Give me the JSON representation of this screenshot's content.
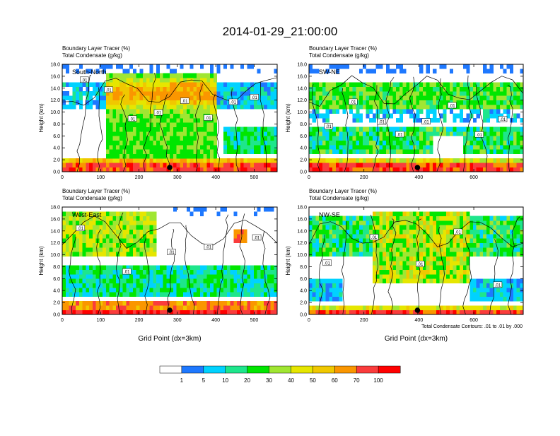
{
  "title": "2014-01-29_21:00:00",
  "footnote": "Total Condensate Contours: .01 to .01 by .000",
  "colors": {
    "bins": [
      "#ffffff",
      "#1e78ff",
      "#00d2ff",
      "#1ee68c",
      "#00e600",
      "#a0e632",
      "#e6e600",
      "#f0c800",
      "#fa9600",
      "#fa3c3c",
      "#ff0000"
    ],
    "contour": "#000000"
  },
  "colorbar": {
    "labels": [
      "1",
      "5",
      "10",
      "20",
      "30",
      "40",
      "50",
      "60",
      "70",
      "100"
    ]
  },
  "chart_data": [
    {
      "type": "heatmap",
      "panel_label": "South-North",
      "subtitle_1": "Boundary Layer Tracer   (%)",
      "subtitle_2": "Total Condensate   (g/kg)",
      "ylabel": "Height (km)",
      "xlabel": "",
      "xlim": [
        0,
        560
      ],
      "ylim": [
        0,
        18
      ],
      "xticks": [
        "0",
        "100",
        "200",
        "300",
        "400",
        "500"
      ],
      "yticks": [
        "0.0",
        "2.0",
        "4.0",
        "6.0",
        "8.0",
        "10.0",
        "12.0",
        "14.0",
        "16.0",
        "18.0"
      ],
      "marker_x": 280,
      "contour_labels": [
        ".01",
        ".01",
        ".01",
        ".01",
        ".01",
        ".01",
        ".01",
        ".01"
      ]
    },
    {
      "type": "heatmap",
      "panel_label": "SW-NE",
      "subtitle_1": "Boundary Layer Tracer   (%)",
      "subtitle_2": "Total Condensate   (g/kg)",
      "ylabel": "Height (km)",
      "xlabel": "",
      "xlim": [
        0,
        780
      ],
      "ylim": [
        0,
        18
      ],
      "xticks": [
        "0",
        "200",
        "400",
        "600"
      ],
      "yticks": [
        "0.0",
        "2.0",
        "4.0",
        "6.0",
        "8.0",
        "10.0",
        "12.0",
        "14.0",
        "16.0",
        "18.0"
      ],
      "marker_x": 395,
      "contour_labels": [
        ".01",
        ".01",
        ".01",
        ".01",
        ".01",
        ".01",
        ".01",
        ".01"
      ]
    },
    {
      "type": "heatmap",
      "panel_label": "West-East",
      "subtitle_1": "Boundary Layer Tracer   (%)",
      "subtitle_2": "Total Condensate   (g/kg)",
      "ylabel": "Height (km)",
      "xlabel": "Grid Point (dx=3km)",
      "xlim": [
        0,
        560
      ],
      "ylim": [
        0,
        18
      ],
      "xticks": [
        "0",
        "100",
        "200",
        "300",
        "400",
        "500"
      ],
      "yticks": [
        "0.0",
        "2.0",
        "4.0",
        "6.0",
        "8.0",
        "10.0",
        "12.0",
        "14.0",
        "16.0",
        "18.0"
      ],
      "marker_x": 280,
      "contour_labels": [
        ".01",
        ".01",
        ".01",
        ".01",
        ".01"
      ]
    },
    {
      "type": "heatmap",
      "panel_label": "NW-SE",
      "subtitle_1": "Boundary Layer Tracer   (%)",
      "subtitle_2": "Total Condensate   (g/kg)",
      "ylabel": "Height (km)",
      "xlabel": "Grid Point (dx=3km)",
      "xlim": [
        0,
        780
      ],
      "ylim": [
        0,
        18
      ],
      "xticks": [
        "0",
        "200",
        "400",
        "600"
      ],
      "yticks": [
        "0.0",
        "2.0",
        "4.0",
        "6.0",
        "8.0",
        "10.0",
        "12.0",
        "14.0",
        "16.0",
        "18.0"
      ],
      "marker_x": 395,
      "contour_labels": [
        ".01",
        ".01",
        ".01",
        ".01",
        ".01"
      ]
    }
  ]
}
